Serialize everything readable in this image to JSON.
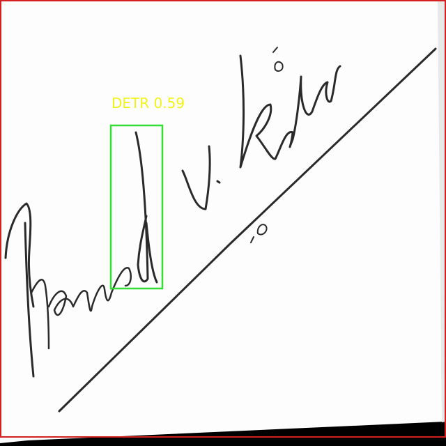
{
  "detections": [
    {
      "label": "DETR 0.59"
    }
  ]
}
